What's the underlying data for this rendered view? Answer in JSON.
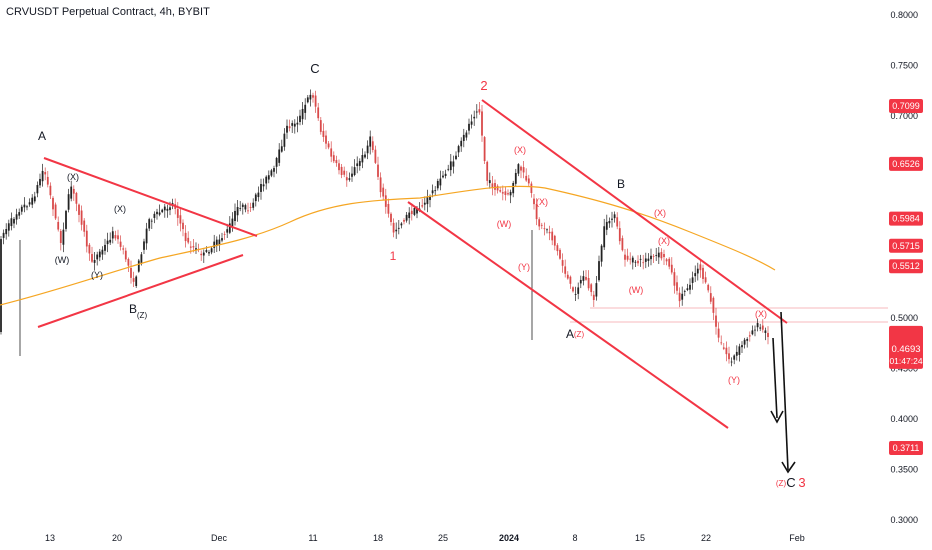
{
  "header": {
    "title": "CRVUSDT Perpetual Contract, 4h, BYBIT"
  },
  "colors": {
    "candle_up": "#222222",
    "candle_down": "#d94a4a",
    "trendline": "#f23645",
    "ma": "#f5a623",
    "price_tag": "#f23645"
  },
  "chart_data": {
    "type": "candlestick",
    "ylim": [
      0.28,
      0.81
    ],
    "y_ticks": [
      "0.8000",
      "0.7500",
      "0.7000",
      "0.6500",
      "0.6000",
      "0.5500",
      "0.5000",
      "0.4500",
      "0.4000",
      "0.3500",
      "0.3000"
    ],
    "x_ticks": [
      "13",
      "20",
      "Dec",
      "11",
      "18",
      "25",
      "2024",
      "8",
      "15",
      "22",
      "Feb"
    ],
    "price_tags": [
      {
        "value": 0.7099,
        "label": "0.7099"
      },
      {
        "value": 0.6526,
        "label": "0.6526"
      },
      {
        "value": 0.5984,
        "label": "0.5984"
      },
      {
        "value": 0.5715,
        "label": "0.5715"
      },
      {
        "value": 0.5512,
        "label": "0.5512"
      },
      {
        "value": 0.3711,
        "label": "0.3711"
      }
    ],
    "current_price": {
      "value": 0.4693,
      "label": "0.4693",
      "countdown": "01:47:24"
    },
    "wave_labels_black": [
      "A",
      "(X)",
      "(W)",
      "(Y)",
      "(X)",
      "B",
      "(Z)",
      "C",
      "B",
      "A",
      "C"
    ],
    "wave_labels_red": [
      "2",
      "1",
      "(X)",
      "(W)",
      "(X)",
      "(Y)",
      "(X)",
      "(W)",
      "(X)",
      "(Z)",
      "(Y)",
      "(X)",
      "(Z)",
      "3"
    ]
  }
}
